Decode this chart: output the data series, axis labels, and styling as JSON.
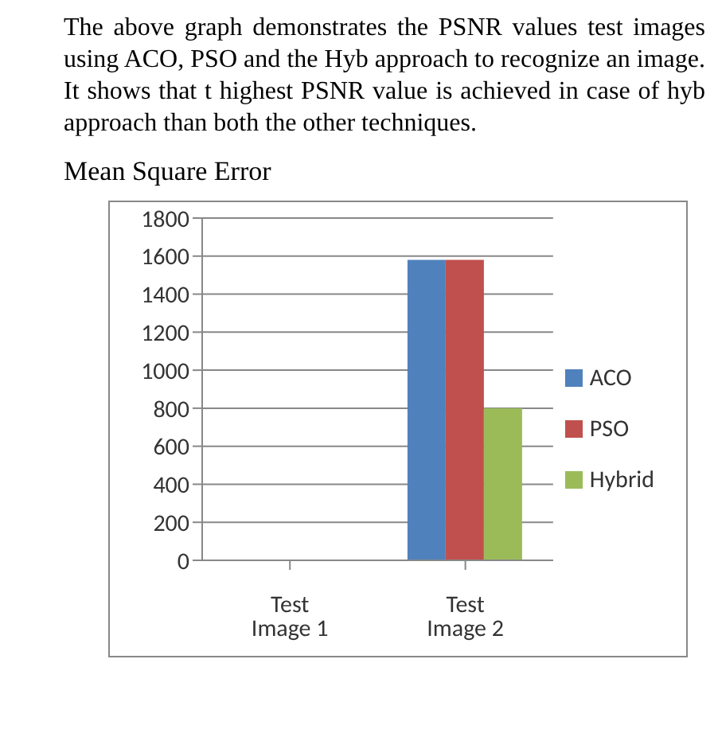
{
  "chart_data": {
    "type": "bar",
    "title": "Mean Square Error",
    "annotations": [
      "The above graph demonstrates the PSNR values test images using ACO, PSO and the Hyb approach to recognize an image. It shows that t highest PSNR value is achieved in case of hyb approach than both the other techniques."
    ],
    "categories": [
      "Test Image 1",
      "Test Image 2"
    ],
    "series": [
      {
        "name": "ACO",
        "color": "#4f81bd",
        "values": [
          0,
          1580
        ]
      },
      {
        "name": "PSO",
        "color": "#c0504d",
        "values": [
          0,
          1580
        ]
      },
      {
        "name": "Hybrid",
        "color": "#9bbb59",
        "values": [
          0,
          800
        ]
      }
    ],
    "ylim": [
      0,
      1800
    ],
    "yticks": [
      0,
      200,
      400,
      600,
      800,
      1000,
      1200,
      1400,
      1600,
      1800
    ],
    "grid": "y",
    "legend": "right"
  }
}
